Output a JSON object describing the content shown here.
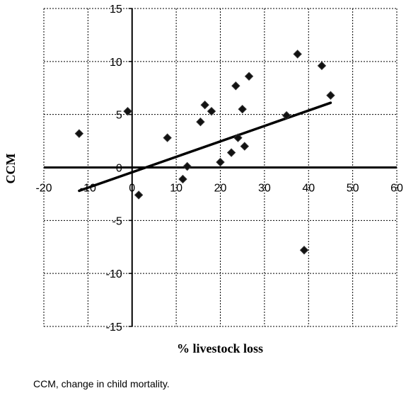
{
  "chart_data": {
    "type": "scatter",
    "title": "",
    "xlabel": "% livestock loss",
    "ylabel": "CCM",
    "xlim": [
      -20,
      60
    ],
    "ylim": [
      -15,
      15
    ],
    "x_ticks": [
      -20,
      -10,
      0,
      10,
      20,
      30,
      40,
      50,
      60
    ],
    "y_ticks": [
      15,
      10,
      5,
      0,
      -5,
      -10,
      -15
    ],
    "x_tick_labels": [
      "-20",
      "-10",
      "0",
      "10",
      "20",
      "30",
      "40",
      "50",
      "60"
    ],
    "y_tick_labels": [
      "15",
      "10",
      "5",
      "0",
      "-5",
      "-10",
      "-15"
    ],
    "grid": true,
    "series": [
      {
        "marker": "diamond",
        "color": "#111111",
        "points": [
          {
            "x": -12,
            "y": 3.2
          },
          {
            "x": -1,
            "y": 5.3
          },
          {
            "x": 1.5,
            "y": -2.6
          },
          {
            "x": 8,
            "y": 2.8
          },
          {
            "x": 11.5,
            "y": -1.1
          },
          {
            "x": 12.5,
            "y": 0.1
          },
          {
            "x": 15.5,
            "y": 4.3
          },
          {
            "x": 16.5,
            "y": 5.9
          },
          {
            "x": 18,
            "y": 5.3
          },
          {
            "x": 20,
            "y": 0.5
          },
          {
            "x": 22.5,
            "y": 1.4
          },
          {
            "x": 23.5,
            "y": 7.7
          },
          {
            "x": 24,
            "y": 2.8
          },
          {
            "x": 25,
            "y": 5.5
          },
          {
            "x": 25.5,
            "y": 2.0
          },
          {
            "x": 26.5,
            "y": 8.6
          },
          {
            "x": 35,
            "y": 4.9
          },
          {
            "x": 37.5,
            "y": 10.7
          },
          {
            "x": 39,
            "y": -7.8
          },
          {
            "x": 43,
            "y": 9.6
          },
          {
            "x": 45,
            "y": 6.8
          }
        ]
      }
    ],
    "trendline": {
      "x": [
        -12,
        45
      ],
      "y": [
        -2.2,
        6.1
      ]
    }
  },
  "footnote": "CCM, change in child mortality."
}
